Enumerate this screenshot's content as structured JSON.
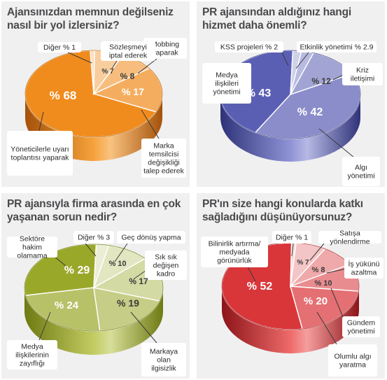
{
  "chart_data": [
    {
      "type": "pie",
      "title": "Ajansınızdan memnun değilseniz nasıl bir yol izlersiniz?",
      "colors": {
        "top": "#f08c1e",
        "side_dark": "#a5520a",
        "side_light": "#f6a23c"
      },
      "slices": [
        {
          "label": "Yöneticilerle uyarı toplantısı yaparak",
          "value": 68,
          "display": "% 68"
        },
        {
          "label": "Marka temsilcisi değişikliği talep ederek",
          "value": 17,
          "display": "% 17"
        },
        {
          "label": "Mobbing yaparak",
          "value": 8,
          "display": "% 8"
        },
        {
          "label": "Sözleşmeyi iptal ederek",
          "value": 7,
          "display": "% 7"
        },
        {
          "label": "Diğer % 1",
          "value": 1,
          "display": ""
        }
      ]
    },
    {
      "type": "pie",
      "title": "PR ajansından aldığınız hangi hizmet daha önemli?",
      "colors": {
        "top": "#5b5fb4",
        "side_dark": "#2e3278",
        "side_light": "#8f93d6"
      },
      "slices": [
        {
          "label": "Medya ilişkileri yönetimi",
          "value": 43,
          "display": "% 43"
        },
        {
          "label": "Algı yönetimi",
          "value": 42,
          "display": "% 42"
        },
        {
          "label": "Kriz iletişimi",
          "value": 12,
          "display": "% 12"
        },
        {
          "label": "Etkinlik yönetimi % 2.9",
          "value": 2.9,
          "display": ""
        },
        {
          "label": "KSS projeleri % 2",
          "value": 2,
          "display": ""
        }
      ]
    },
    {
      "type": "pie",
      "title": "PR ajansıyla firma arasında en çok yaşanan sorun nedir?",
      "colors": {
        "top": "#9aa82a",
        "side_dark": "#6e7a12",
        "side_light": "#c2cc62"
      },
      "slices": [
        {
          "label": "Sektöre hakim olamama",
          "value": 29,
          "display": "% 29"
        },
        {
          "label": "Medya ilişkilerinin zayıflığı",
          "value": 24,
          "display": "% 24"
        },
        {
          "label": "Markaya olan ilgisizlik",
          "value": 19,
          "display": "% 19"
        },
        {
          "label": "Sık sık değişen kadro",
          "value": 17,
          "display": "% 17"
        },
        {
          "label": "Geç dönüş yapma",
          "value": 10,
          "display": "% 10"
        },
        {
          "label": "Diğer % 3",
          "value": 3,
          "display": ""
        }
      ]
    },
    {
      "type": "pie",
      "title": "PR'ın size hangi konularda katkı sağladığını düşünüyorsunuz?",
      "colors": {
        "top": "#d9363a",
        "side_dark": "#8c1418",
        "side_light": "#ef6a6a"
      },
      "slices": [
        {
          "label": "Bilinirlik artırma/ medyada görünürlük",
          "value": 52,
          "display": "% 52"
        },
        {
          "label": "Olumlu algı yaratma",
          "value": 20,
          "display": "% 20"
        },
        {
          "label": "Gündem yönetimi",
          "value": 10,
          "display": "% 10"
        },
        {
          "label": "İş yükünü azaltma",
          "value": 8,
          "display": "% 8"
        },
        {
          "label": "Satışa yönlendirme",
          "value": 7,
          "display": "% 7"
        },
        {
          "label": "Diğer % 1",
          "value": 1,
          "display": ""
        }
      ]
    }
  ]
}
